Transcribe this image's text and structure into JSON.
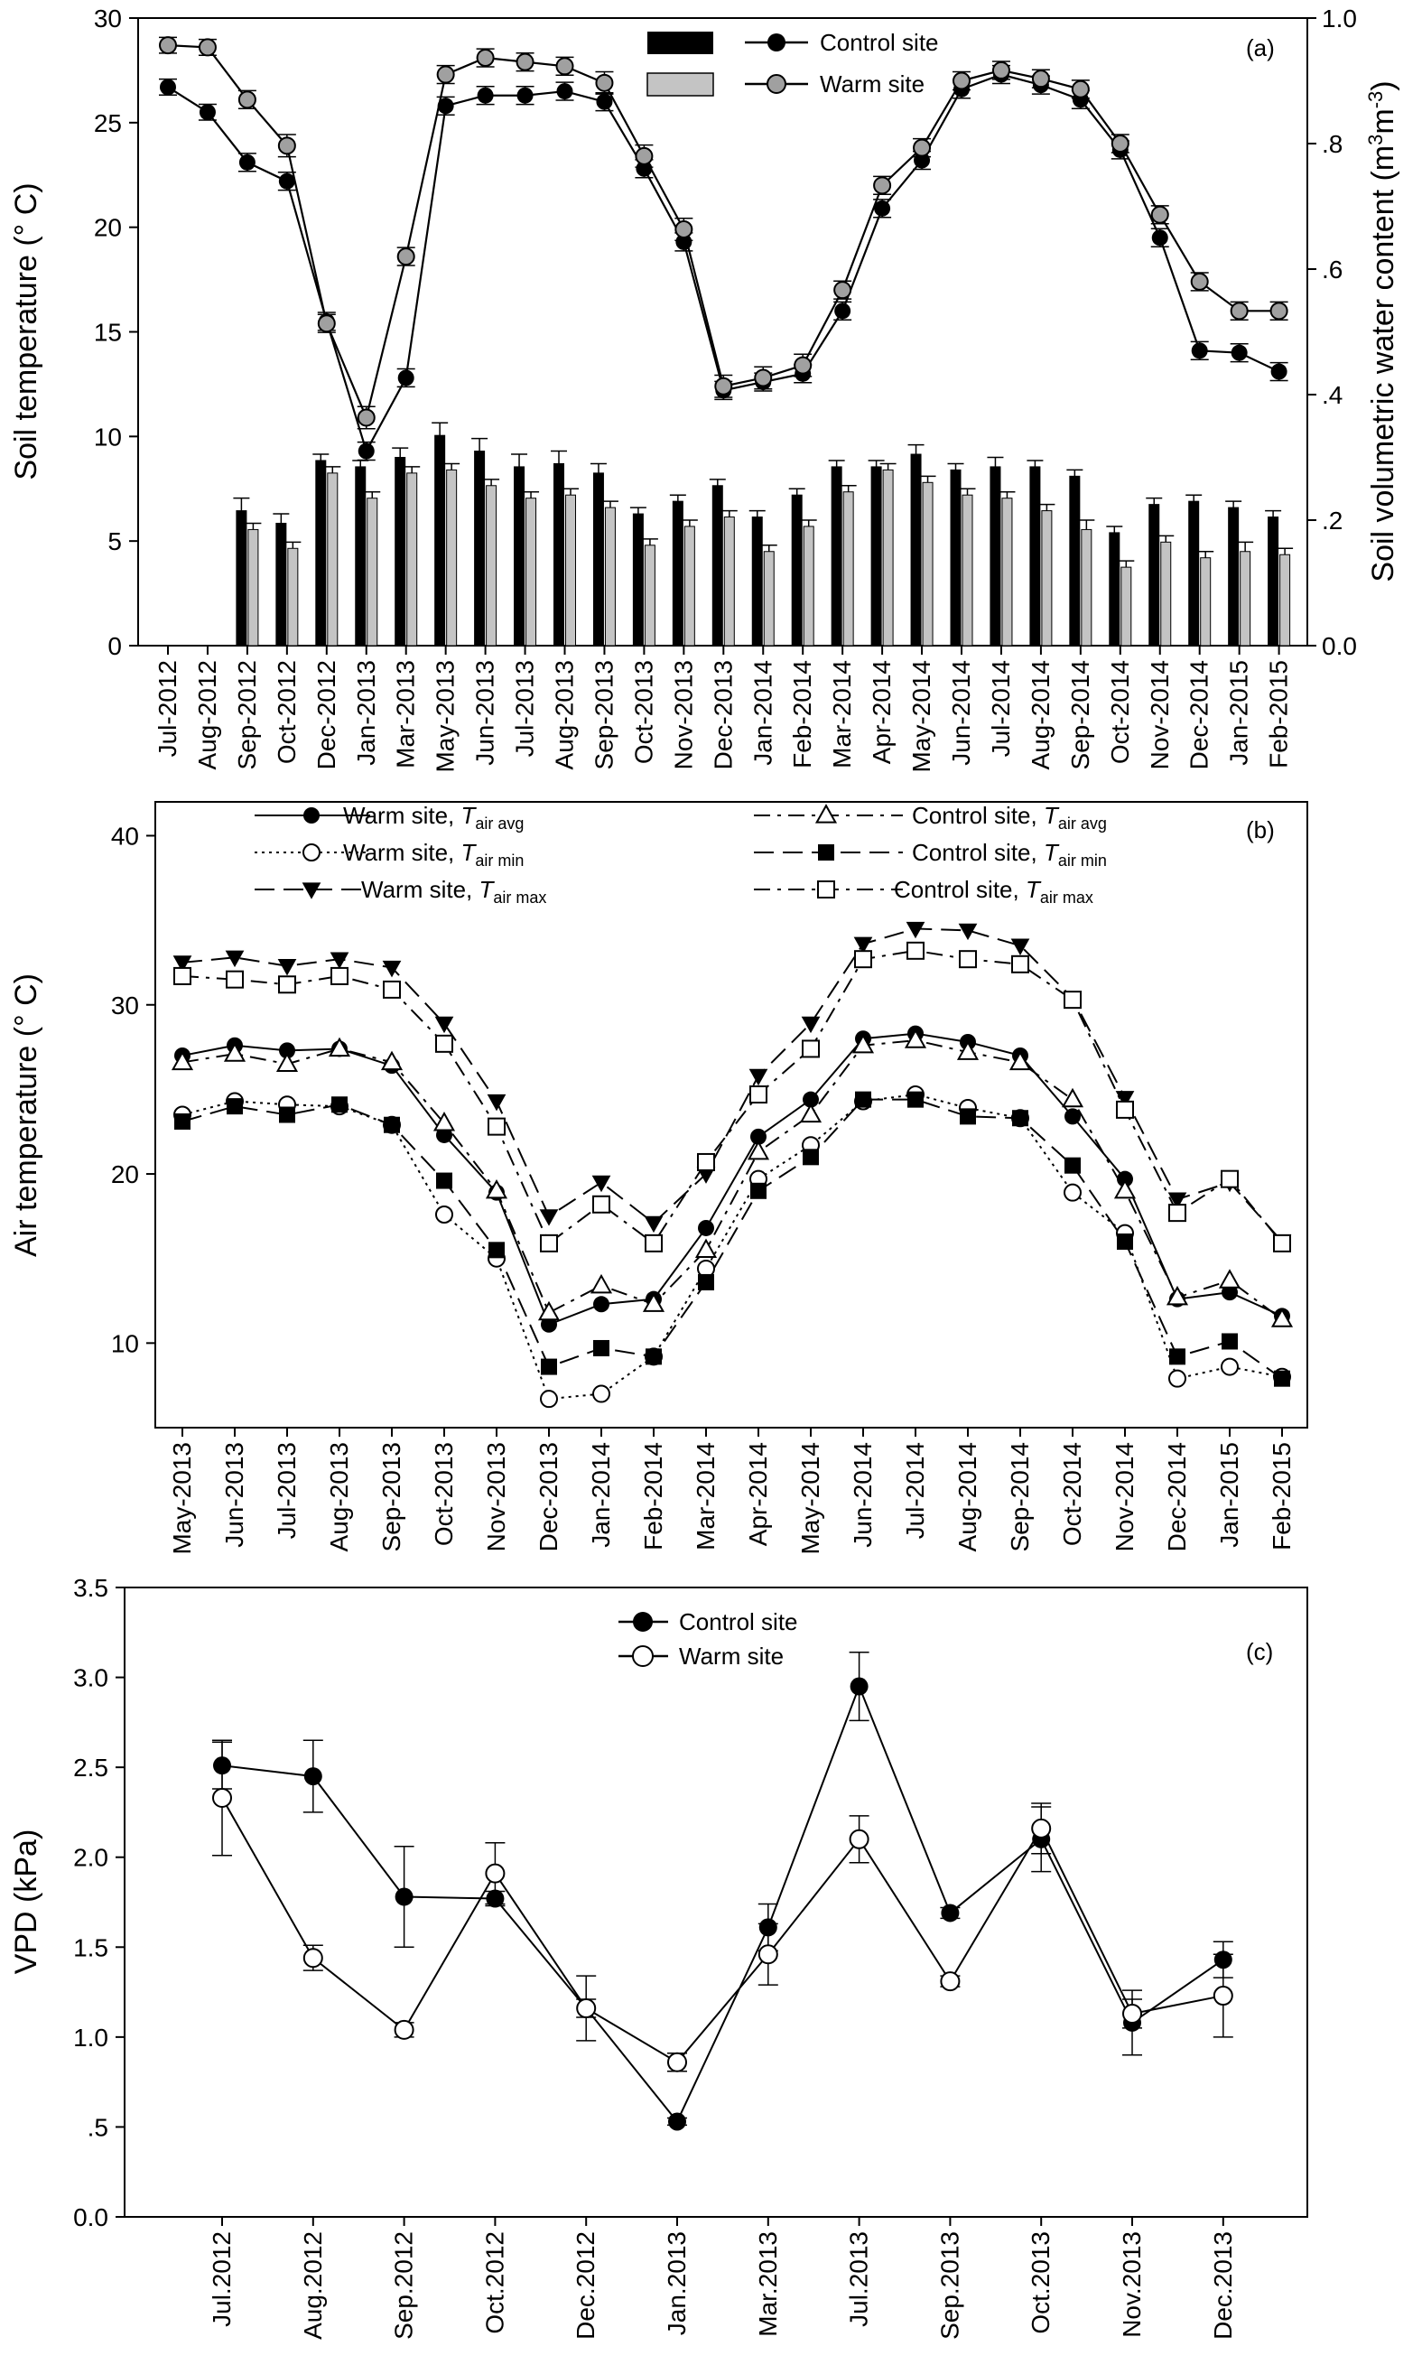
{
  "chart_data": [
    {
      "panel_label": "(a)",
      "type": "line+bar",
      "ylabel": "Soil temperature (° C)",
      "y2label_parts": [
        "Soil volumetric water content (m",
        "3",
        "m",
        "-3",
        ")"
      ],
      "ylim": [
        0,
        30
      ],
      "y2lim": [
        0,
        1.0
      ],
      "ytick_labels": [
        "0",
        "5",
        "10",
        "15",
        "20",
        "25",
        "30"
      ],
      "y2tick_labels": [
        "0.0",
        ".2",
        ".4",
        ".6",
        ".8",
        "1.0"
      ],
      "categories": [
        "Jul-2012",
        "Aug-2012",
        "Sep-2012",
        "Oct-2012",
        "Dec-2012",
        "Jan-2013",
        "Mar-2013",
        "May-2013",
        "Jun-2013",
        "Jul-2013",
        "Aug-2013",
        "Sep-2013",
        "Oct-2013",
        "Nov-2013",
        "Dec-2013",
        "Jan-2014",
        "Feb-2014",
        "Mar-2014",
        "Apr-2014",
        "May-2014",
        "Jun-2014",
        "Jul-2014",
        "Aug-2014",
        "Sep-2014",
        "Oct-2014",
        "Nov-2014",
        "Dec-2014",
        "Jan-2015",
        "Feb-2015"
      ],
      "legend_entries": [
        "Control site",
        "Warm site"
      ],
      "series": [
        {
          "name": "Control site",
          "kind": "line",
          "axis": "left",
          "color": "#000000",
          "values": [
            26.7,
            25.5,
            23.1,
            22.2,
            15.5,
            9.3,
            12.8,
            25.8,
            26.3,
            26.3,
            26.5,
            26.0,
            22.8,
            19.3,
            12.2,
            12.6,
            13.0,
            16.0,
            20.9,
            23.2,
            26.6,
            27.3,
            26.8,
            26.1,
            23.7,
            19.5,
            14.1,
            14.0,
            13.1
          ],
          "errors": [
            0.25,
            0.25,
            0.3,
            0.3,
            0.3,
            0.3,
            0.3,
            0.3,
            0.3,
            0.3,
            0.3,
            0.3,
            0.3,
            0.3,
            0.3,
            0.3,
            0.3,
            0.3,
            0.3,
            0.3,
            0.3,
            0.3,
            0.3,
            0.3,
            0.3,
            0.3,
            0.3,
            0.3,
            0.3
          ]
        },
        {
          "name": "Warm site",
          "kind": "line",
          "axis": "left",
          "color": "#a0a0a0",
          "values": [
            28.7,
            28.6,
            26.1,
            23.9,
            15.4,
            10.9,
            18.6,
            27.3,
            28.1,
            27.9,
            27.7,
            26.9,
            23.4,
            19.9,
            12.4,
            12.8,
            13.4,
            17.0,
            22.0,
            23.8,
            27.0,
            27.5,
            27.1,
            26.6,
            24.0,
            20.6,
            17.4,
            16.0,
            16.0
          ],
          "errors": [
            0.25,
            0.25,
            0.3,
            0.4,
            0.3,
            0.4,
            0.3,
            0.3,
            0.3,
            0.3,
            0.3,
            0.4,
            0.4,
            0.4,
            0.4,
            0.4,
            0.4,
            0.3,
            0.3,
            0.3,
            0.3,
            0.3,
            0.3,
            0.3,
            0.3,
            0.3,
            0.3,
            0.3,
            0.3
          ]
        },
        {
          "name": "Control site",
          "kind": "bar",
          "axis": "right",
          "color": "#000000",
          "values": [
            null,
            null,
            0.215,
            0.195,
            0.295,
            0.285,
            0.3,
            0.335,
            0.31,
            0.285,
            0.29,
            0.275,
            0.21,
            0.23,
            0.255,
            0.205,
            0.24,
            0.285,
            0.285,
            0.305,
            0.28,
            0.285,
            0.285,
            0.27,
            0.18,
            0.225,
            0.23,
            0.22,
            0.205
          ],
          "errors": [
            null,
            null,
            0.02,
            0.015,
            0.01,
            0.01,
            0.015,
            0.02,
            0.02,
            0.02,
            0.02,
            0.015,
            0.01,
            0.01,
            0.01,
            0.01,
            0.01,
            0.01,
            0.01,
            0.015,
            0.01,
            0.015,
            0.01,
            0.01,
            0.01,
            0.01,
            0.01,
            0.01,
            0.01
          ]
        },
        {
          "name": "Warm site",
          "kind": "bar",
          "axis": "right",
          "color": "#c4c4c4",
          "values": [
            null,
            null,
            0.185,
            0.155,
            0.275,
            0.235,
            0.275,
            0.28,
            0.255,
            0.235,
            0.24,
            0.22,
            0.16,
            0.19,
            0.205,
            0.15,
            0.19,
            0.245,
            0.28,
            0.26,
            0.24,
            0.235,
            0.215,
            0.185,
            0.125,
            0.165,
            0.14,
            0.15,
            0.145
          ],
          "errors": [
            null,
            null,
            0.01,
            0.01,
            0.01,
            0.01,
            0.01,
            0.01,
            0.01,
            0.01,
            0.01,
            0.01,
            0.01,
            0.01,
            0.01,
            0.01,
            0.01,
            0.01,
            0.01,
            0.01,
            0.01,
            0.01,
            0.01,
            0.015,
            0.01,
            0.01,
            0.01,
            0.015,
            0.01
          ]
        }
      ]
    },
    {
      "panel_label": "(b)",
      "type": "line",
      "ylabel": "Air temperature (° C)",
      "ylim": [
        5,
        42
      ],
      "ytick_labels": [
        "10",
        "20",
        "30",
        "40"
      ],
      "categories": [
        "May-2013",
        "Jun-2013",
        "Jul-2013",
        "Aug-2013",
        "Sep-2013",
        "Oct-2013",
        "Nov-2013",
        "Dec-2013",
        "Jan-2014",
        "Feb-2014",
        "Mar-2014",
        "Apr-2014",
        "May-2014",
        "Jun-2014",
        "Jul-2014",
        "Aug-2014",
        "Sep-2014",
        "Oct-2014",
        "Nov-2014",
        "Dec-2014",
        "Jan-2015",
        "Feb-2015"
      ],
      "legend_prefixes": [
        "Warm site, ",
        "Warm site, ",
        "Warm site, ",
        "Control site, ",
        "Control site, ",
        "Control site, "
      ],
      "legend_var": "T",
      "legend_subs": [
        "air avg",
        "air min",
        "air max",
        "air avg",
        "air min",
        "air max"
      ],
      "series": [
        {
          "name": "Warm site, Tair avg",
          "marker": "filled-circle",
          "dash": "solid",
          "values": [
            27.0,
            27.6,
            27.3,
            27.4,
            26.4,
            22.3,
            18.9,
            11.1,
            12.3,
            12.6,
            16.8,
            22.2,
            24.4,
            28.0,
            28.3,
            27.8,
            27.0,
            23.4,
            19.7,
            12.6,
            13.0,
            11.6
          ]
        },
        {
          "name": "Warm site, Tair min",
          "marker": "open-circle",
          "dash": "dotted",
          "values": [
            23.5,
            24.3,
            24.1,
            24.0,
            22.9,
            17.6,
            15.0,
            6.7,
            7.0,
            9.2,
            14.4,
            19.7,
            21.7,
            24.3,
            24.7,
            23.9,
            23.3,
            18.9,
            16.5,
            7.9,
            8.6,
            8.0
          ]
        },
        {
          "name": "Warm site, Tair max",
          "marker": "filled-triangle-down",
          "dash": "long-dash",
          "values": [
            32.5,
            32.8,
            32.3,
            32.7,
            32.2,
            28.9,
            24.3,
            17.5,
            19.5,
            17.1,
            20.0,
            25.8,
            28.9,
            33.6,
            34.5,
            34.4,
            33.5,
            30.4,
            24.5,
            18.5,
            19.5,
            16.0
          ]
        },
        {
          "name": "Control site, Tair avg",
          "marker": "open-triangle-up",
          "dash": "dash-dot",
          "values": [
            26.6,
            27.1,
            26.5,
            27.4,
            26.6,
            23.0,
            19.0,
            11.8,
            13.4,
            12.3,
            15.5,
            21.3,
            23.5,
            27.6,
            27.9,
            27.2,
            26.6,
            24.4,
            19.0,
            12.7,
            13.7,
            11.4
          ]
        },
        {
          "name": "Control site, Tair min",
          "marker": "filled-square",
          "dash": "long-dash",
          "values": [
            23.1,
            24.0,
            23.5,
            24.1,
            22.9,
            19.6,
            15.5,
            8.6,
            9.7,
            9.2,
            13.6,
            19.0,
            21.0,
            24.4,
            24.4,
            23.4,
            23.3,
            20.5,
            16.0,
            9.2,
            10.1,
            7.9
          ]
        },
        {
          "name": "Control site, Tair max",
          "marker": "open-square",
          "dash": "dash-dot",
          "values": [
            31.7,
            31.5,
            31.2,
            31.7,
            30.9,
            27.7,
            22.8,
            15.9,
            18.2,
            15.9,
            20.7,
            24.7,
            27.4,
            32.7,
            33.2,
            32.7,
            32.4,
            30.3,
            23.8,
            17.7,
            19.7,
            15.9
          ]
        }
      ]
    },
    {
      "panel_label": "(c)",
      "type": "line",
      "ylabel": "VPD (kPa)",
      "ylim": [
        0,
        3.5
      ],
      "ytick_labels": [
        "0.0",
        ".5",
        "1.0",
        "1.5",
        "2.0",
        "2.5",
        "3.0",
        "3.5"
      ],
      "categories": [
        "Jul.2012",
        "Aug.2012",
        "Sep.2012",
        "Oct.2012",
        "Dec.2012",
        "Jan.2013",
        "Mar.2013",
        "Jul.2013",
        "Sep.2013",
        "Oct.2013",
        "Nov.2013",
        "Dec.2013"
      ],
      "legend_entries": [
        "Control site",
        "Warm site"
      ],
      "series": [
        {
          "name": "Control site",
          "marker": "filled-circle",
          "values": [
            2.51,
            2.45,
            1.78,
            1.77,
            1.16,
            0.53,
            1.61,
            2.95,
            1.69,
            2.1,
            1.08,
            1.43
          ],
          "errors": [
            0.13,
            0.2,
            0.28,
            0.04,
            0.18,
            0.02,
            0.13,
            0.19,
            0.03,
            0.18,
            0.18,
            0.1
          ]
        },
        {
          "name": "Warm site",
          "marker": "open-circle",
          "values": [
            2.33,
            1.44,
            1.04,
            1.91,
            1.16,
            0.86,
            1.46,
            2.1,
            1.31,
            2.16,
            1.13,
            1.23
          ],
          "errors": [
            0.32,
            0.07,
            0.04,
            0.17,
            0.05,
            0.05,
            0.17,
            0.13,
            0.03,
            0.14,
            0.08,
            0.23
          ]
        }
      ]
    }
  ]
}
